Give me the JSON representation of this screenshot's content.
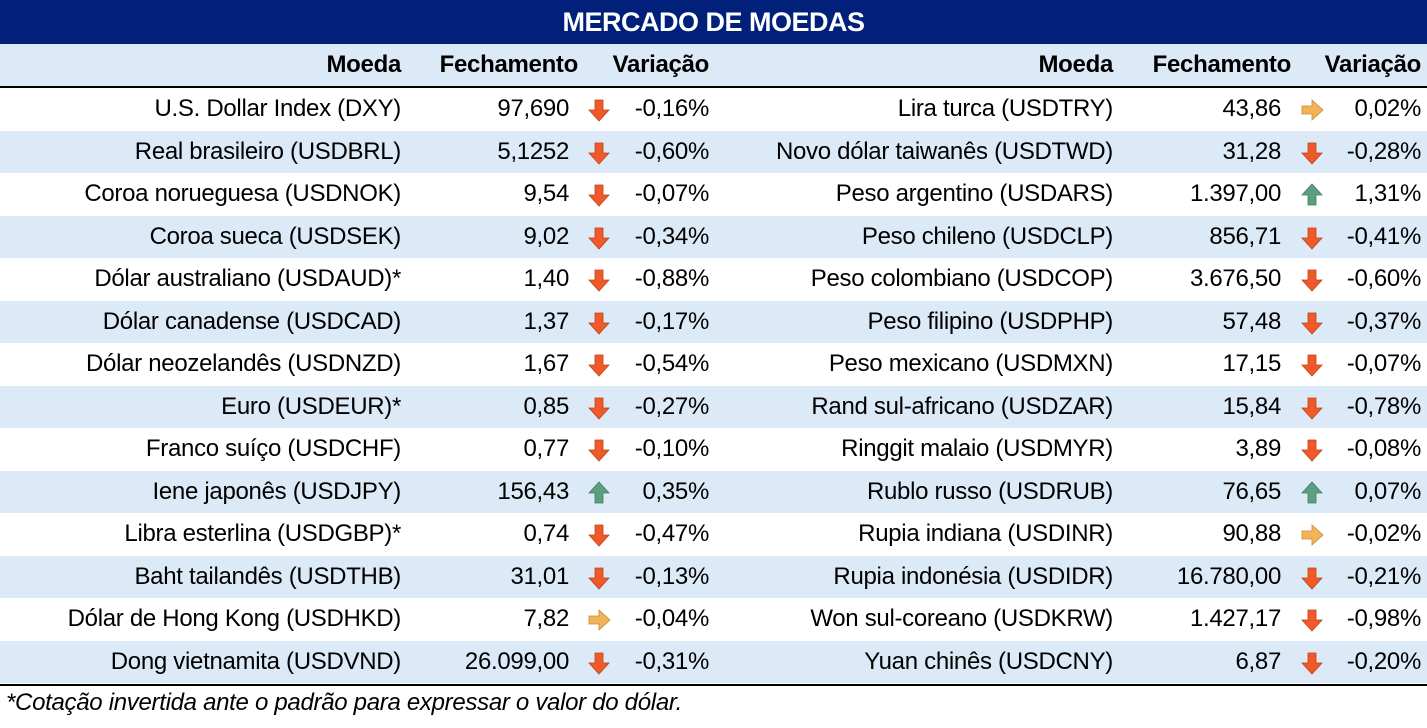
{
  "title": "MERCADO DE MOEDAS",
  "headers": {
    "moeda": "Moeda",
    "fechamento": "Fechamento",
    "variacao": "Variação"
  },
  "colors": {
    "title_bg": "#00207a",
    "row_shade": "#dceaf7",
    "arrow_down": "#f05a28",
    "arrow_up": "#5b9f80",
    "arrow_flat": "#f2b35a"
  },
  "left": [
    {
      "moeda": "U.S. Dollar Index (DXY)",
      "fechamento": "97,690",
      "trend": "down",
      "variacao": "-0,16%"
    },
    {
      "moeda": "Real brasileiro (USDBRL)",
      "fechamento": "5,1252",
      "trend": "down",
      "variacao": "-0,60%"
    },
    {
      "moeda": "Coroa norueguesa (USDNOK)",
      "fechamento": "9,54",
      "trend": "down",
      "variacao": "-0,07%"
    },
    {
      "moeda": "Coroa sueca (USDSEK)",
      "fechamento": "9,02",
      "trend": "down",
      "variacao": "-0,34%"
    },
    {
      "moeda": "Dólar australiano (USDAUD)*",
      "fechamento": "1,40",
      "trend": "down",
      "variacao": "-0,88%"
    },
    {
      "moeda": "Dólar canadense (USDCAD)",
      "fechamento": "1,37",
      "trend": "down",
      "variacao": "-0,17%"
    },
    {
      "moeda": "Dólar neozelandês (USDNZD)",
      "fechamento": "1,67",
      "trend": "down",
      "variacao": "-0,54%"
    },
    {
      "moeda": "Euro (USDEUR)*",
      "fechamento": "0,85",
      "trend": "down",
      "variacao": "-0,27%"
    },
    {
      "moeda": "Franco suíço (USDCHF)",
      "fechamento": "0,77",
      "trend": "down",
      "variacao": "-0,10%"
    },
    {
      "moeda": "Iene japonês (USDJPY)",
      "fechamento": "156,43",
      "trend": "up",
      "variacao": "0,35%"
    },
    {
      "moeda": "Libra esterlina (USDGBP)*",
      "fechamento": "0,74",
      "trend": "down",
      "variacao": "-0,47%"
    },
    {
      "moeda": "Baht tailandês (USDTHB)",
      "fechamento": "31,01",
      "trend": "down",
      "variacao": "-0,13%"
    },
    {
      "moeda": "Dólar de Hong Kong (USDHKD)",
      "fechamento": "7,82",
      "trend": "flat",
      "variacao": "-0,04%"
    },
    {
      "moeda": "Dong vietnamita (USDVND)",
      "fechamento": "26.099,00",
      "trend": "down",
      "variacao": "-0,31%"
    }
  ],
  "right": [
    {
      "moeda": "Lira turca (USDTRY)",
      "fechamento": "43,86",
      "trend": "flat",
      "variacao": "0,02%"
    },
    {
      "moeda": "Novo dólar taiwanês (USDTWD)",
      "fechamento": "31,28",
      "trend": "down",
      "variacao": "-0,28%"
    },
    {
      "moeda": "Peso argentino (USDARS)",
      "fechamento": "1.397,00",
      "trend": "up",
      "variacao": "1,31%"
    },
    {
      "moeda": "Peso chileno (USDCLP)",
      "fechamento": "856,71",
      "trend": "down",
      "variacao": "-0,41%"
    },
    {
      "moeda": "Peso colombiano (USDCOP)",
      "fechamento": "3.676,50",
      "trend": "down",
      "variacao": "-0,60%"
    },
    {
      "moeda": "Peso filipino (USDPHP)",
      "fechamento": "57,48",
      "trend": "down",
      "variacao": "-0,37%"
    },
    {
      "moeda": "Peso mexicano (USDMXN)",
      "fechamento": "17,15",
      "trend": "down",
      "variacao": "-0,07%"
    },
    {
      "moeda": "Rand sul-africano (USDZAR)",
      "fechamento": "15,84",
      "trend": "down",
      "variacao": "-0,78%"
    },
    {
      "moeda": "Ringgit malaio (USDMYR)",
      "fechamento": "3,89",
      "trend": "down",
      "variacao": "-0,08%"
    },
    {
      "moeda": "Rublo russo (USDRUB)",
      "fechamento": "76,65",
      "trend": "up",
      "variacao": "0,07%"
    },
    {
      "moeda": "Rupia indiana (USDINR)",
      "fechamento": "90,88",
      "trend": "flat",
      "variacao": "-0,02%"
    },
    {
      "moeda": "Rupia indonésia (USDIDR)",
      "fechamento": "16.780,00",
      "trend": "down",
      "variacao": "-0,21%"
    },
    {
      "moeda": "Won sul-coreano (USDKRW)",
      "fechamento": "1.427,17",
      "trend": "down",
      "variacao": "-0,98%"
    },
    {
      "moeda": "Yuan chinês (USDCNY)",
      "fechamento": "6,87",
      "trend": "down",
      "variacao": "-0,20%"
    }
  ],
  "footnote": "*Cotação invertida ante o padrão para expressar o valor do dólar."
}
